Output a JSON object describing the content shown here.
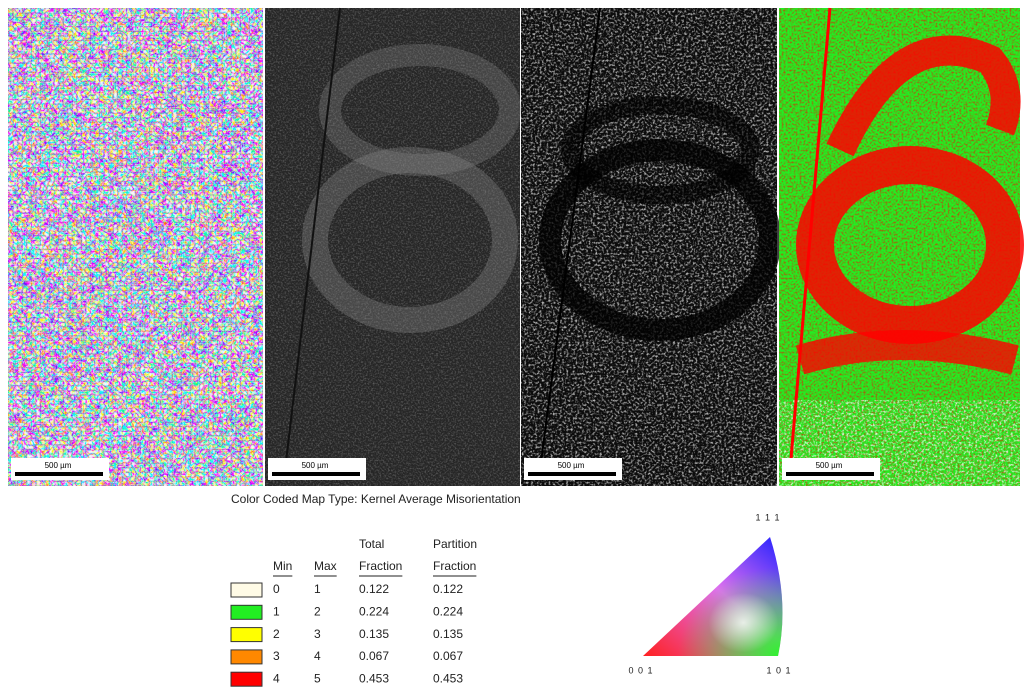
{
  "panels": [
    {
      "scale_bar": "500 µm"
    },
    {
      "scale_bar": "500 µm"
    },
    {
      "scale_bar": "500 µm"
    },
    {
      "scale_bar": "500 µm"
    }
  ],
  "legend": {
    "title": "Color Coded Map Type: Kernel Average Misorientation",
    "headers": {
      "min": "Min",
      "max": "Max",
      "total": [
        "Total",
        "Fraction"
      ],
      "partition": [
        "Partition",
        "Fraction"
      ]
    },
    "rows": [
      {
        "color": "#fffbe6",
        "min": 0,
        "max": 1,
        "total": 0.122,
        "partition": 0.122
      },
      {
        "color": "#22ee22",
        "min": 1,
        "max": 2,
        "total": 0.224,
        "partition": 0.224
      },
      {
        "color": "#ffff00",
        "min": 2,
        "max": 3,
        "total": 0.135,
        "partition": 0.135
      },
      {
        "color": "#ff8800",
        "min": 3,
        "max": 4,
        "total": 0.067,
        "partition": 0.067
      },
      {
        "color": "#ff0000",
        "min": 4,
        "max": 5,
        "total": 0.453,
        "partition": 0.453
      }
    ]
  },
  "ipf_triangle": {
    "top": "1 1 1",
    "left": "0 0 1",
    "right": "1 0 1"
  }
}
